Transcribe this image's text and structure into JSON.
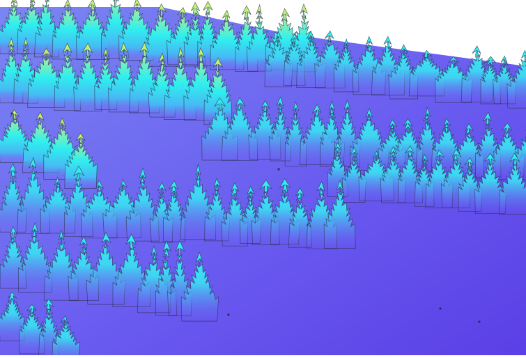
{
  "scene": {
    "subject": "lidar-point-cloud-forest-canopy",
    "colors": {
      "background": "#ffffff",
      "ground_low": "#5a3fe6",
      "ground_mid": "#6a5cf0",
      "mid": "#36c4f0",
      "high": "#2ff0f4",
      "top": "#e8f560",
      "outline": "#2a2f4a"
    }
  }
}
